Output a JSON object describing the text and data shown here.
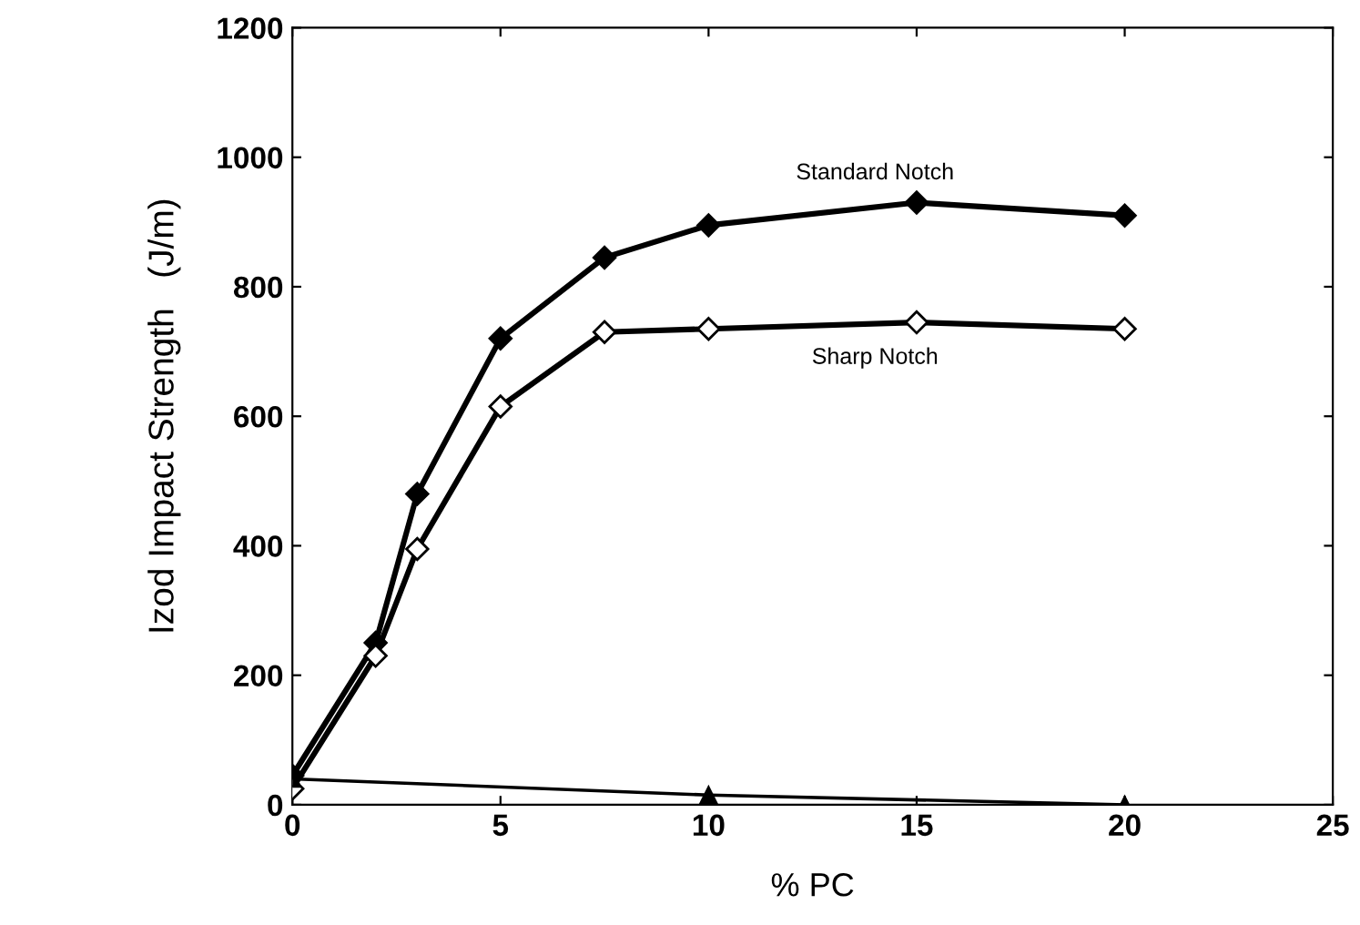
{
  "chart_data": {
    "type": "line",
    "xlabel": "% PC",
    "ylabel": "Izod Impact Strength   (J/m)",
    "xlim": [
      0,
      25
    ],
    "ylim": [
      0,
      1200
    ],
    "xticks": [
      0,
      5,
      10,
      15,
      20,
      25
    ],
    "yticks": [
      0,
      200,
      400,
      600,
      800,
      1000,
      1200
    ],
    "grid": false,
    "legend": false,
    "series": [
      {
        "name": "Standard Notch",
        "color": "#000000",
        "marker": "diamond",
        "x": [
          0,
          2,
          3,
          5,
          7.5,
          10,
          15,
          20
        ],
        "values": [
          45,
          250,
          480,
          720,
          845,
          895,
          930,
          910
        ]
      },
      {
        "name": "Sharp Notch",
        "color": "#000000",
        "marker": "diamond",
        "colors": [
          "#ffffff",
          "#ffffff",
          "#ffffff",
          "#ffffff",
          "#ffffff",
          "#ffffff",
          "#ffffff",
          "#ffffff"
        ],
        "x": [
          0,
          2,
          3,
          5,
          7.5,
          10,
          15,
          20
        ],
        "values": [
          25,
          230,
          395,
          615,
          730,
          735,
          745,
          735
        ]
      },
      {
        "color": "#000000",
        "marker": "triangle",
        "x": [
          0,
          10,
          20
        ],
        "values": [
          40,
          15,
          0
        ]
      }
    ]
  }
}
